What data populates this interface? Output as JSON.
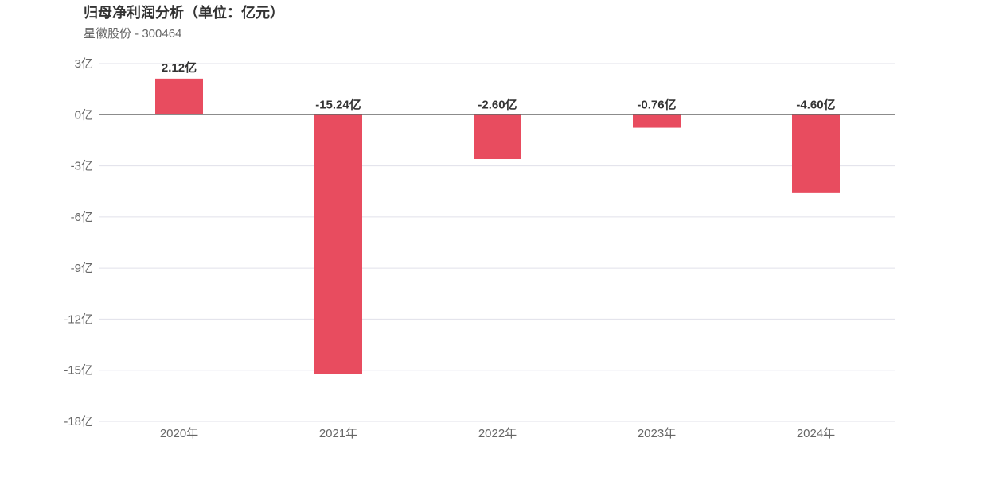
{
  "chart_data": {
    "type": "bar",
    "title": "归母净利润分析（单位：亿元）",
    "subtitle": "星徽股份 - 300464",
    "categories": [
      "2020年",
      "2021年",
      "2022年",
      "2023年",
      "2024年"
    ],
    "values": [
      2.12,
      -15.24,
      -2.6,
      -0.76,
      -4.6
    ],
    "data_labels": [
      "2.12亿",
      "-15.24亿",
      "-2.60亿",
      "-0.76亿",
      "-4.60亿"
    ],
    "ylim": [
      -18,
      3
    ],
    "yticks": [
      3,
      0,
      -3,
      -6,
      -9,
      -12,
      -15,
      -18
    ],
    "ytick_labels": [
      "3亿",
      "0亿",
      "-3亿",
      "-6亿",
      "-9亿",
      "-12亿",
      "-15亿",
      "-18亿"
    ],
    "xlabel": "",
    "ylabel": "",
    "grid": true,
    "bar_color": "#e84c5f",
    "grid_color": "#e0e0ea",
    "zero_line_color": "#666666"
  }
}
